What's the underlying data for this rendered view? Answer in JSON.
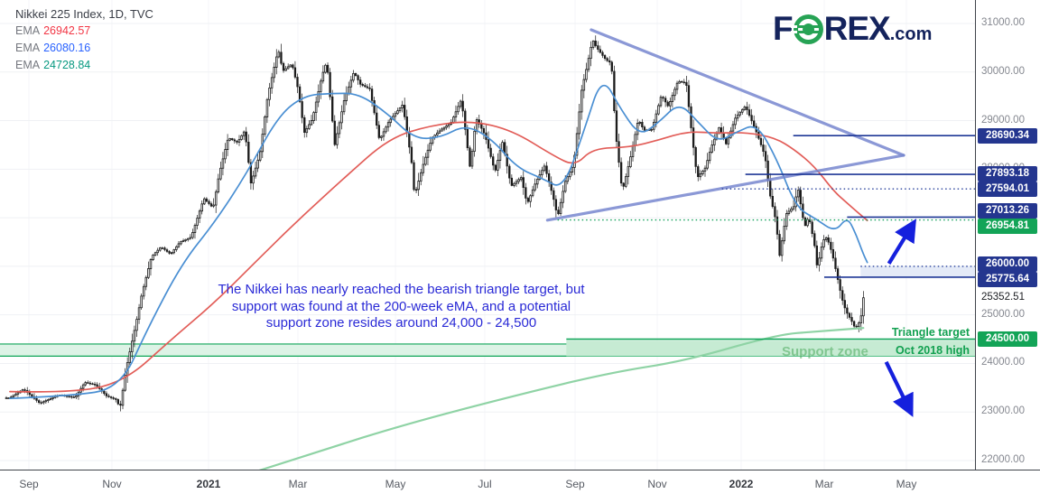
{
  "header": {
    "title": "Nikkei 225 Index, 1D, TVC",
    "emas": [
      {
        "label": "EMA",
        "value": "26942.57",
        "color": "#f23645"
      },
      {
        "label": "EMA",
        "value": "26080.16",
        "color": "#2962ff"
      },
      {
        "label": "EMA",
        "value": "24728.84",
        "color": "#089981"
      }
    ]
  },
  "logo": {
    "f": "F",
    "rex": "REX",
    "com": ".com",
    "navy": "#14235c",
    "green": "#27a355"
  },
  "annotation": {
    "color": "#2a2ad6",
    "lines": [
      "The Nikkei has nearly reached the bearish triangle target, but",
      "support was found at the 200-week eMA, and a potential",
      "support zone resides around 24,000 - 24,500"
    ]
  },
  "labels": {
    "support_zone": "Support zone",
    "triangle_target": "Triangle target",
    "oct_2018_high": "Oct 2018 high"
  },
  "axis": {
    "y_ticks": [
      {
        "price": 31000,
        "label": "31000.00"
      },
      {
        "price": 30000,
        "label": "30000.00"
      },
      {
        "price": 29000,
        "label": "29000.00"
      },
      {
        "price": 28000,
        "label": "28000.00"
      },
      {
        "price": 27000,
        "label": "27000.00"
      },
      {
        "price": 26000,
        "label": "26000.00"
      },
      {
        "price": 25000,
        "label": "25000.00"
      },
      {
        "price": 24000,
        "label": "24000.00"
      },
      {
        "price": 23000,
        "label": "23000.00"
      },
      {
        "price": 22000,
        "label": "22000.00"
      }
    ],
    "current_price": {
      "price": 25352.51,
      "label": "25352.51"
    },
    "badges": [
      {
        "price": 28690.34,
        "label": "28690.34",
        "color": "#24368f"
      },
      {
        "price": 27893.18,
        "label": "27893.18",
        "color": "#24368f"
      },
      {
        "price": 27594.01,
        "label": "27594.01",
        "color": "#24368f"
      },
      {
        "price": 27013.26,
        "label": "27013.26",
        "color": "#24368f"
      },
      {
        "price": 26954.81,
        "label": "26954.81",
        "color": "#13a457"
      },
      {
        "price": 26000.0,
        "label": "26000.00",
        "color": "#24368f"
      },
      {
        "price": 25775.64,
        "label": "25775.64",
        "color": "#24368f"
      },
      {
        "price": 24500.0,
        "label": "24500.00",
        "color": "#13a457"
      }
    ],
    "x_ticks": [
      {
        "label": "Sep",
        "date": "2020-09-01",
        "bold": false
      },
      {
        "label": "Nov",
        "date": "2020-11-01",
        "bold": false
      },
      {
        "label": "2021",
        "date": "2021-01-01",
        "bold": true
      },
      {
        "label": "Mar",
        "date": "2021-03-01",
        "bold": false
      },
      {
        "label": "May",
        "date": "2021-05-01",
        "bold": false
      },
      {
        "label": "Jul",
        "date": "2021-07-01",
        "bold": false
      },
      {
        "label": "Sep",
        "date": "2021-09-01",
        "bold": false
      },
      {
        "label": "Nov",
        "date": "2021-11-01",
        "bold": false
      },
      {
        "label": "2022",
        "date": "2022-01-01",
        "bold": true
      },
      {
        "label": "Mar",
        "date": "2022-03-01",
        "bold": false
      },
      {
        "label": "May",
        "date": "2022-05-01",
        "bold": false
      }
    ]
  },
  "chart_data": {
    "type": "candlestick",
    "title": "Nikkei 225 Index, 1D, TVC",
    "ylim": [
      21550,
      31450
    ],
    "grid": true,
    "series": [
      {
        "name": "Nikkei 225 close",
        "type": "candles",
        "color": "#1a1a1a",
        "points": [
          [
            "2020-08-18",
            23290
          ],
          [
            "2020-08-28",
            23470
          ],
          [
            "2020-09-09",
            23180
          ],
          [
            "2020-09-23",
            23350
          ],
          [
            "2020-10-05",
            23300
          ],
          [
            "2020-10-12",
            23610
          ],
          [
            "2020-10-20",
            23560
          ],
          [
            "2020-10-28",
            23330
          ],
          [
            "2020-11-04",
            23250
          ],
          [
            "2020-11-06",
            23060
          ],
          [
            "2020-11-10",
            23900
          ],
          [
            "2020-11-16",
            24800
          ],
          [
            "2020-11-20",
            25450
          ],
          [
            "2020-11-26",
            26200
          ],
          [
            "2020-12-02",
            26400
          ],
          [
            "2020-12-08",
            26250
          ],
          [
            "2020-12-14",
            26500
          ],
          [
            "2020-12-21",
            26600
          ],
          [
            "2020-12-29",
            27400
          ],
          [
            "2021-01-04",
            27200
          ],
          [
            "2021-01-08",
            27900
          ],
          [
            "2021-01-14",
            28650
          ],
          [
            "2021-01-20",
            28550
          ],
          [
            "2021-01-25",
            28800
          ],
          [
            "2021-01-29",
            27700
          ],
          [
            "2021-02-04",
            28340
          ],
          [
            "2021-02-09",
            29500
          ],
          [
            "2021-02-16",
            30470
          ],
          [
            "2021-02-19",
            30020
          ],
          [
            "2021-02-25",
            30170
          ],
          [
            "2021-03-01",
            29660
          ],
          [
            "2021-03-05",
            28750
          ],
          [
            "2021-03-10",
            29030
          ],
          [
            "2021-03-16",
            29920
          ],
          [
            "2021-03-19",
            30220
          ],
          [
            "2021-03-24",
            28500
          ],
          [
            "2021-03-30",
            29430
          ],
          [
            "2021-04-05",
            30000
          ],
          [
            "2021-04-09",
            29750
          ],
          [
            "2021-04-15",
            29650
          ],
          [
            "2021-04-21",
            28600
          ],
          [
            "2021-04-27",
            28990
          ],
          [
            "2021-05-06",
            29330
          ],
          [
            "2021-05-12",
            28150
          ],
          [
            "2021-05-14",
            27450
          ],
          [
            "2021-05-20",
            28100
          ],
          [
            "2021-05-26",
            28650
          ],
          [
            "2021-06-01",
            28810
          ],
          [
            "2021-06-08",
            28960
          ],
          [
            "2021-06-15",
            29440
          ],
          [
            "2021-06-21",
            28010
          ],
          [
            "2021-06-25",
            29050
          ],
          [
            "2021-07-01",
            28710
          ],
          [
            "2021-07-08",
            27940
          ],
          [
            "2021-07-13",
            28570
          ],
          [
            "2021-07-19",
            27650
          ],
          [
            "2021-07-26",
            27830
          ],
          [
            "2021-07-30",
            27280
          ],
          [
            "2021-08-05",
            27730
          ],
          [
            "2021-08-11",
            28070
          ],
          [
            "2021-08-17",
            27420
          ],
          [
            "2021-08-20",
            27010
          ],
          [
            "2021-08-25",
            27730
          ],
          [
            "2021-08-31",
            28090
          ],
          [
            "2021-09-06",
            29660
          ],
          [
            "2021-09-09",
            30010
          ],
          [
            "2021-09-14",
            30670
          ],
          [
            "2021-09-17",
            30500
          ],
          [
            "2021-09-24",
            30250
          ],
          [
            "2021-09-28",
            30180
          ],
          [
            "2021-10-01",
            28770
          ],
          [
            "2021-10-06",
            27530
          ],
          [
            "2021-10-12",
            28230
          ],
          [
            "2021-10-18",
            29030
          ],
          [
            "2021-10-22",
            28800
          ],
          [
            "2021-10-28",
            28820
          ],
          [
            "2021-11-04",
            29520
          ],
          [
            "2021-11-09",
            29290
          ],
          [
            "2021-11-16",
            29810
          ],
          [
            "2021-11-22",
            29780
          ],
          [
            "2021-11-26",
            28750
          ],
          [
            "2021-11-30",
            27820
          ],
          [
            "2021-12-06",
            28030
          ],
          [
            "2021-12-10",
            28440
          ],
          [
            "2021-12-16",
            28860
          ],
          [
            "2021-12-21",
            28520
          ],
          [
            "2021-12-28",
            29070
          ],
          [
            "2022-01-04",
            29300
          ],
          [
            "2022-01-12",
            28750
          ],
          [
            "2022-01-18",
            28260
          ],
          [
            "2022-01-21",
            27530
          ],
          [
            "2022-01-26",
            26890
          ],
          [
            "2022-01-28",
            26170
          ],
          [
            "2022-02-02",
            27080
          ],
          [
            "2022-02-08",
            27250
          ],
          [
            "2022-02-10",
            27660
          ],
          [
            "2022-02-15",
            26800
          ],
          [
            "2022-02-18",
            27030
          ],
          [
            "2022-02-22",
            26450
          ],
          [
            "2022-02-24",
            25970
          ],
          [
            "2022-02-28",
            26530
          ],
          [
            "2022-03-03",
            26600
          ],
          [
            "2022-03-07",
            26250
          ],
          [
            "2022-03-10",
            25870
          ],
          [
            "2022-03-14",
            25350
          ],
          [
            "2022-03-17",
            25080
          ],
          [
            "2022-03-22",
            24840
          ],
          [
            "2022-03-24",
            24720
          ],
          [
            "2022-03-28",
            24890
          ],
          [
            "2022-03-30",
            25352.51
          ]
        ]
      },
      {
        "name": "EMA fast",
        "type": "line",
        "color": "#4a8fd3",
        "last_value": 26080.16,
        "points": [
          [
            "2020-08-18",
            23280
          ],
          [
            "2020-10-01",
            23330
          ],
          [
            "2020-11-06",
            23480
          ],
          [
            "2020-11-24",
            24750
          ],
          [
            "2020-12-15",
            26050
          ],
          [
            "2021-01-05",
            26900
          ],
          [
            "2021-01-26",
            27900
          ],
          [
            "2021-02-16",
            29100
          ],
          [
            "2021-03-05",
            29520
          ],
          [
            "2021-03-22",
            29560
          ],
          [
            "2021-04-08",
            29560
          ],
          [
            "2021-04-26",
            29150
          ],
          [
            "2021-05-14",
            28620
          ],
          [
            "2021-06-01",
            28650
          ],
          [
            "2021-06-18",
            28920
          ],
          [
            "2021-07-06",
            28620
          ],
          [
            "2021-07-23",
            28030
          ],
          [
            "2021-08-10",
            27800
          ],
          [
            "2021-08-24",
            27580
          ],
          [
            "2021-09-08",
            28820
          ],
          [
            "2021-09-21",
            29940
          ],
          [
            "2021-10-05",
            29230
          ],
          [
            "2021-10-19",
            28680
          ],
          [
            "2021-11-02",
            28960
          ],
          [
            "2021-11-17",
            29380
          ],
          [
            "2021-12-01",
            28960
          ],
          [
            "2021-12-15",
            28550
          ],
          [
            "2021-12-29",
            28770
          ],
          [
            "2022-01-12",
            28940
          ],
          [
            "2022-01-26",
            28230
          ],
          [
            "2022-02-09",
            27210
          ],
          [
            "2022-02-23",
            26980
          ],
          [
            "2022-03-09",
            26700
          ],
          [
            "2022-03-18",
            27020
          ],
          [
            "2022-03-24",
            26700
          ],
          [
            "2022-03-30",
            26250
          ],
          [
            "2022-04-02",
            26080.16
          ]
        ]
      },
      {
        "name": "EMA slow",
        "type": "line",
        "color": "#e25d58",
        "last_value": 26942.57,
        "points": [
          [
            "2020-08-18",
            23420
          ],
          [
            "2020-10-06",
            23390
          ],
          [
            "2020-11-10",
            23650
          ],
          [
            "2020-12-08",
            24480
          ],
          [
            "2021-01-05",
            25250
          ],
          [
            "2021-02-02",
            26120
          ],
          [
            "2021-03-02",
            26980
          ],
          [
            "2021-03-30",
            27820
          ],
          [
            "2021-04-27",
            28640
          ],
          [
            "2021-05-25",
            28900
          ],
          [
            "2021-06-22",
            29000
          ],
          [
            "2021-07-20",
            28800
          ],
          [
            "2021-08-17",
            28280
          ],
          [
            "2021-09-01",
            28060
          ],
          [
            "2021-09-14",
            28430
          ],
          [
            "2021-10-12",
            28450
          ],
          [
            "2021-11-02",
            28600
          ],
          [
            "2021-11-23",
            28780
          ],
          [
            "2021-12-14",
            28740
          ],
          [
            "2022-01-04",
            28760
          ],
          [
            "2022-01-25",
            28650
          ],
          [
            "2022-02-08",
            28400
          ],
          [
            "2022-02-22",
            28060
          ],
          [
            "2022-03-08",
            27550
          ],
          [
            "2022-03-18",
            27300
          ],
          [
            "2022-03-25",
            27130
          ],
          [
            "2022-04-02",
            26942.57
          ]
        ]
      },
      {
        "name": "EMA 200-week",
        "type": "line",
        "color": "#8fd3a5",
        "last_value": 24728.84,
        "points": [
          [
            "2021-02-02",
            21780
          ],
          [
            "2021-03-14",
            22190
          ],
          [
            "2021-05-08",
            22750
          ],
          [
            "2021-07-22",
            23340
          ],
          [
            "2021-09-27",
            23810
          ],
          [
            "2021-11-21",
            24050
          ],
          [
            "2022-01-26",
            24590
          ],
          [
            "2022-02-24",
            24660
          ],
          [
            "2022-03-30",
            24728.84
          ]
        ]
      }
    ],
    "drawings": {
      "triangle": {
        "color": "#7787cf",
        "upper": [
          [
            "2021-09-13",
            30870
          ],
          [
            "2022-04-29",
            28286
          ]
        ],
        "lower": [
          [
            "2021-08-13",
            26950
          ],
          [
            "2022-04-29",
            28286
          ]
        ]
      },
      "h_lines": [
        {
          "price": 28690.34,
          "from": "2022-02-07",
          "style": "solid",
          "color": "#1e3796"
        },
        {
          "price": 27893.18,
          "from": "2022-01-04",
          "style": "solid",
          "color": "#1e3796"
        },
        {
          "price": 27594.01,
          "from": "2021-12-18",
          "style": "dotted",
          "color": "#27409c"
        },
        {
          "price": 27013.26,
          "from": "2022-03-18",
          "style": "solid",
          "color": "#1e3796"
        },
        {
          "price": 26954.81,
          "from": "2021-08-20",
          "style": "dotted",
          "color": "#12a05a"
        },
        {
          "price": 26000.0,
          "from": "2022-03-28",
          "style": "dotted",
          "color": "#27409c"
        },
        {
          "price": 25775.64,
          "from": "2022-03-01",
          "style": "solid",
          "color": "#1e3796"
        },
        {
          "price": 24500.0,
          "from": "2021-08-26",
          "style": "solid",
          "color": "#0fa558"
        }
      ],
      "zones": [
        {
          "top": 26000,
          "bottom": 25775.64,
          "from": "2022-03-28",
          "fill": "#dfe6f6",
          "border": null
        },
        {
          "top": 24400,
          "bottom": 24150,
          "from": null,
          "fill": "#ddf3e6",
          "border": "#0fa558"
        },
        {
          "top": 24470,
          "bottom": 24150,
          "from": "2021-08-26",
          "fill": "#c6ebd3",
          "border": null
        }
      ],
      "arrows": [
        {
          "dir": "up",
          "color": "#1520dd",
          "from": [
            "2022-04-18",
            26056
          ],
          "to": [
            "2022-05-06",
            26874
          ]
        },
        {
          "dir": "down",
          "color": "#1520dd",
          "from": [
            "2022-04-16",
            24030
          ],
          "to": [
            "2022-05-04",
            23008
          ]
        }
      ]
    }
  }
}
